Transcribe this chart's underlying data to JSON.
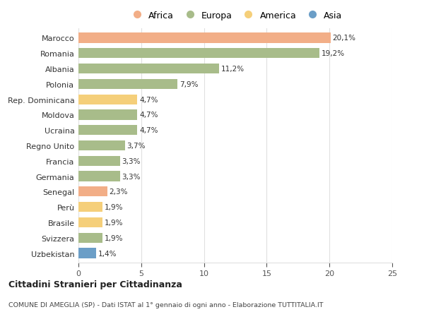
{
  "countries": [
    "Marocco",
    "Romania",
    "Albania",
    "Polonia",
    "Rep. Dominicana",
    "Moldova",
    "Ucraina",
    "Regno Unito",
    "Francia",
    "Germania",
    "Senegal",
    "Perù",
    "Brasile",
    "Svizzera",
    "Uzbekistan"
  ],
  "values": [
    20.1,
    19.2,
    11.2,
    7.9,
    4.7,
    4.7,
    4.7,
    3.7,
    3.3,
    3.3,
    2.3,
    1.9,
    1.9,
    1.9,
    1.4
  ],
  "labels": [
    "20,1%",
    "19,2%",
    "11,2%",
    "7,9%",
    "4,7%",
    "4,7%",
    "4,7%",
    "3,7%",
    "3,3%",
    "3,3%",
    "2,3%",
    "1,9%",
    "1,9%",
    "1,9%",
    "1,4%"
  ],
  "continents": [
    "Africa",
    "Europa",
    "Europa",
    "Europa",
    "America",
    "Europa",
    "Europa",
    "Europa",
    "Europa",
    "Europa",
    "Africa",
    "America",
    "America",
    "Europa",
    "Asia"
  ],
  "colors": {
    "Africa": "#F2AE87",
    "Europa": "#A8BC8A",
    "America": "#F5CF7A",
    "Asia": "#6B9EC7"
  },
  "legend_labels": [
    "Africa",
    "Europa",
    "America",
    "Asia"
  ],
  "legend_colors": [
    "#F2AE87",
    "#A8BC8A",
    "#F5CF7A",
    "#6B9EC7"
  ],
  "xlim": [
    0,
    25
  ],
  "xticks": [
    0,
    5,
    10,
    15,
    20,
    25
  ],
  "title": "Cittadini Stranieri per Cittadinanza",
  "subtitle": "COMUNE DI AMEGLIA (SP) - Dati ISTAT al 1° gennaio di ogni anno - Elaborazione TUTTITALIA.IT",
  "background_color": "#ffffff",
  "grid_color": "#e0e0e0",
  "bar_height": 0.65,
  "label_fontsize": 7.5,
  "ytick_fontsize": 8,
  "xtick_fontsize": 8
}
